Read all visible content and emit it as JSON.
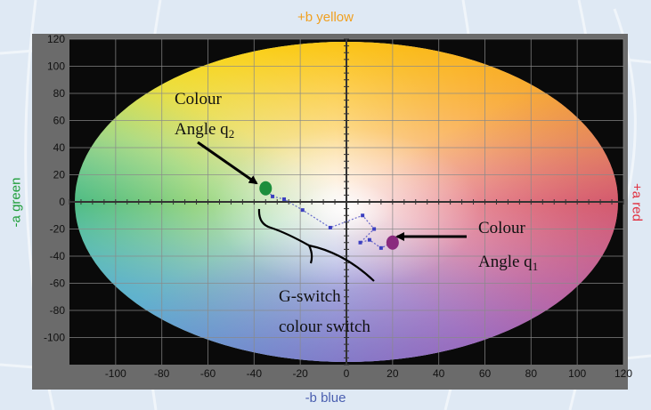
{
  "colors": {
    "background": "#dfe9f4",
    "frame": "#6b6b6b",
    "plot_bg": "#0a0a0a",
    "grid": "#8a8a8a",
    "yellow_label": "#f0a020",
    "green_label": "#1f9e3a",
    "red_label": "#e03040",
    "blue_label": "#4a5fb0",
    "green_point": "#1c8e3c",
    "magenta_point": "#8a2a7e",
    "trail": "#3b3fc0"
  },
  "chart_data": {
    "type": "scatter",
    "title": "",
    "axis_titles": {
      "top": "+b yellow",
      "bottom": "-b blue",
      "left": "-a green",
      "right": "+a red"
    },
    "xlim": [
      -120,
      120
    ],
    "ylim": [
      -120,
      120
    ],
    "x_ticks": [
      -100,
      -80,
      -60,
      -40,
      -20,
      0,
      20,
      40,
      60,
      80,
      100,
      120
    ],
    "y_ticks": [
      120,
      100,
      80,
      60,
      40,
      20,
      0,
      -20,
      -40,
      -60,
      -80,
      -100
    ],
    "grid": true,
    "colour_gamut": "ellipse",
    "points": [
      {
        "name": "green-point",
        "x": -35,
        "y": 10,
        "color": "#1c8e3c"
      },
      {
        "name": "magenta-point",
        "x": 20,
        "y": -30,
        "color": "#8a2a7e"
      }
    ],
    "trail": [
      {
        "x": -35,
        "y": 10
      },
      {
        "x": -32,
        "y": 4
      },
      {
        "x": -27,
        "y": 2
      },
      {
        "x": -19,
        "y": -6
      },
      {
        "x": -7,
        "y": -19
      },
      {
        "x": 7,
        "y": -10
      },
      {
        "x": 12,
        "y": -20
      },
      {
        "x": 6,
        "y": -30
      },
      {
        "x": 10,
        "y": -28
      },
      {
        "x": 15,
        "y": -34
      },
      {
        "x": 20,
        "y": -30
      }
    ],
    "annotations": {
      "colour_angle_2": {
        "line1": "Colour",
        "line2": "Angle q",
        "sub": "2"
      },
      "colour_angle_1": {
        "line1": "Colour",
        "line2": "Angle q",
        "sub": "1"
      },
      "g_switch": {
        "line1": "G-switch",
        "line2": "colour switch"
      }
    }
  }
}
